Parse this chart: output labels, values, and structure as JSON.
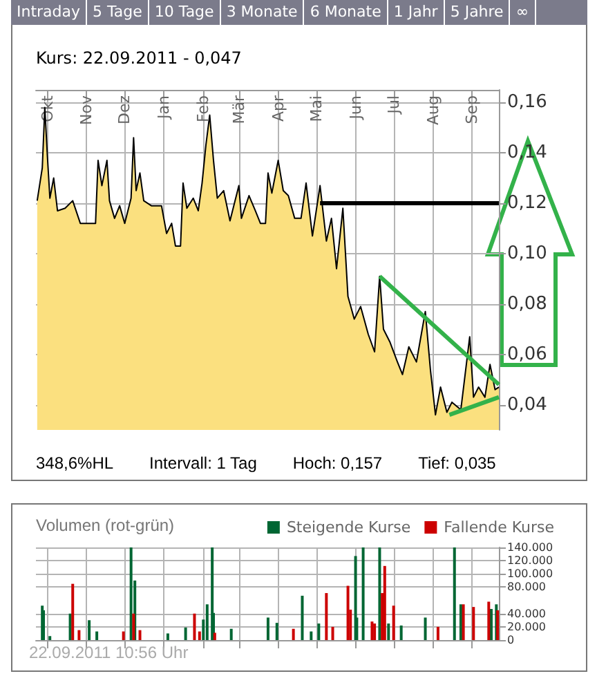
{
  "chart_data": [
    {
      "type": "other",
      "annotations": [
        "Intraday",
        "5 Tage",
        "10 Tage",
        "3 Monate",
        "6 Monate",
        "1 Jahr",
        "5 Jahre",
        "∞"
      ]
    },
    {
      "type": "area",
      "title": "Kurs: 22.09.2011 - 0,047",
      "annotations": [
        "348,6%HL",
        "Intervall: 1 Tag",
        "Hoch: 0,157",
        "Tief: 0,035"
      ],
      "grid": true,
      "xlim": [
        "2010-09-22",
        "2011-09-22"
      ],
      "xticks": [
        {
          "value": "2010-10-01",
          "label": "Okt"
        },
        {
          "value": "2010-11-01",
          "label": "Nov"
        },
        {
          "value": "2010-12-01",
          "label": "Dez"
        },
        {
          "value": "2011-01-01",
          "label": "Jan"
        },
        {
          "value": "2011-02-01",
          "label": "Feb"
        },
        {
          "value": "2011-03-01",
          "label": "Mär"
        },
        {
          "value": "2011-04-01",
          "label": "Apr"
        },
        {
          "value": "2011-05-01",
          "label": "Mai"
        },
        {
          "value": "2011-06-01",
          "label": "Jun"
        },
        {
          "value": "2011-07-01",
          "label": "Jul"
        },
        {
          "value": "2011-08-01",
          "label": "Aug"
        },
        {
          "value": "2011-09-01",
          "label": "Sep"
        }
      ],
      "ylim": [
        0.03,
        0.165
      ],
      "yticks": [
        {
          "value": 0.04,
          "label": "0,04"
        },
        {
          "value": 0.06,
          "label": "0,06"
        },
        {
          "value": 0.08,
          "label": "0,08"
        },
        {
          "value": 0.1,
          "label": "0,10"
        },
        {
          "value": 0.12,
          "label": "0,12"
        },
        {
          "value": 0.14,
          "label": "0,14"
        },
        {
          "value": 0.16,
          "label": "0,16"
        }
      ],
      "series": [
        {
          "color": "#fbe07f",
          "x": [
            "2010-09-23",
            "2010-09-27",
            "2010-09-29",
            "2010-10-01",
            "2010-10-03",
            "2010-10-06",
            "2010-10-09",
            "2010-10-15",
            "2010-10-21",
            "2010-10-27",
            "2010-11-08",
            "2010-11-10",
            "2010-11-13",
            "2010-11-17",
            "2010-11-19",
            "2010-11-23",
            "2010-11-27",
            "2010-12-01",
            "2010-12-06",
            "2010-12-08",
            "2010-12-10",
            "2010-12-13",
            "2010-12-16",
            "2010-12-22",
            "2010-12-30",
            "2011-01-03",
            "2011-01-07",
            "2011-01-10",
            "2011-01-14",
            "2011-01-16",
            "2011-01-19",
            "2011-01-24",
            "2011-01-28",
            "2011-01-31",
            "2011-02-03",
            "2011-02-06",
            "2011-02-09",
            "2011-02-12",
            "2011-02-17",
            "2011-02-22",
            "2011-03-01",
            "2011-03-03",
            "2011-03-09",
            "2011-03-14",
            "2011-03-18",
            "2011-03-22",
            "2011-03-24",
            "2011-03-27",
            "2011-04-01",
            "2011-04-05",
            "2011-04-09",
            "2011-04-14",
            "2011-04-19",
            "2011-04-23",
            "2011-04-28",
            "2011-05-04",
            "2011-05-09",
            "2011-05-13",
            "2011-05-17",
            "2011-05-22",
            "2011-05-26",
            "2011-05-31",
            "2011-06-05",
            "2011-06-11",
            "2011-06-16",
            "2011-06-20",
            "2011-06-23",
            "2011-06-28",
            "2011-07-04",
            "2011-07-08",
            "2011-07-13",
            "2011-07-19",
            "2011-07-26",
            "2011-07-30",
            "2011-08-03",
            "2011-08-07",
            "2011-08-12",
            "2011-08-16",
            "2011-08-23",
            "2011-08-30",
            "2011-09-02",
            "2011-09-06",
            "2011-09-11",
            "2011-09-15",
            "2011-09-19",
            "2011-09-22"
          ],
          "values": [
            0.121,
            0.134,
            0.158,
            0.139,
            0.122,
            0.13,
            0.117,
            0.118,
            0.121,
            0.112,
            0.112,
            0.137,
            0.127,
            0.137,
            0.121,
            0.114,
            0.119,
            0.112,
            0.122,
            0.146,
            0.125,
            0.132,
            0.121,
            0.119,
            0.119,
            0.108,
            0.112,
            0.103,
            0.103,
            0.128,
            0.118,
            0.122,
            0.117,
            0.128,
            0.143,
            0.155,
            0.137,
            0.122,
            0.125,
            0.113,
            0.127,
            0.114,
            0.123,
            0.117,
            0.112,
            0.112,
            0.132,
            0.124,
            0.137,
            0.125,
            0.123,
            0.114,
            0.114,
            0.128,
            0.107,
            0.127,
            0.105,
            0.114,
            0.094,
            0.118,
            0.083,
            0.074,
            0.079,
            0.068,
            0.061,
            0.091,
            0.07,
            0.065,
            0.057,
            0.052,
            0.063,
            0.057,
            0.077,
            0.054,
            0.036,
            0.047,
            0.037,
            0.041,
            0.038,
            0.067,
            0.043,
            0.047,
            0.043,
            0.056,
            0.046,
            0.047
          ]
        },
        {
          "type": "line",
          "color": "#000000",
          "x": [
            "2011-05-04",
            "2011-09-22"
          ],
          "values": [
            0.12,
            0.12
          ]
        },
        {
          "type": "line",
          "color": "#33b24a",
          "x": [
            "2011-06-20",
            "2011-09-22"
          ],
          "values": [
            0.091,
            0.048
          ]
        },
        {
          "type": "line",
          "color": "#33b24a",
          "x": [
            "2011-08-14",
            "2011-09-22"
          ],
          "values": [
            0.036,
            0.043
          ]
        }
      ]
    },
    {
      "type": "bar",
      "title": "Volumen (rot-grün)",
      "annotations": [
        "22.09.2011 10:56 Uhr"
      ],
      "grid": true,
      "legend": "top right",
      "tick_labels": "y",
      "xlim": [
        "2010-09-22",
        "2011-09-22"
      ],
      "xticks": [
        {
          "value": "2010-10-01",
          "label": null
        },
        {
          "value": "2010-11-01",
          "label": null
        },
        {
          "value": "2010-12-01",
          "label": null
        },
        {
          "value": "2011-01-01",
          "label": null
        },
        {
          "value": "2011-02-01",
          "label": null
        },
        {
          "value": "2011-03-01",
          "label": null
        },
        {
          "value": "2011-04-01",
          "label": null
        },
        {
          "value": "2011-05-01",
          "label": null
        },
        {
          "value": "2011-06-01",
          "label": null
        },
        {
          "value": "2011-07-01",
          "label": null
        },
        {
          "value": "2011-08-01",
          "label": null
        },
        {
          "value": "2011-09-01",
          "label": null
        }
      ],
      "ylim": [
        0,
        140000
      ],
      "yticks": [
        {
          "value": 0,
          "label": "0"
        },
        {
          "value": 20000,
          "label": "20.000"
        },
        {
          "value": 40000,
          "label": "40.000"
        },
        {
          "value": 80000,
          "label": "80.000"
        },
        {
          "value": 100000,
          "label": "100.000"
        },
        {
          "value": 120000,
          "label": "120.000"
        },
        {
          "value": 140000,
          "label": "140.000"
        }
      ],
      "series": [
        {
          "name": "Steigende Kurse",
          "color": "#006633",
          "x": [
            "2010-09-27",
            "2010-09-28",
            "2010-10-03",
            "2010-10-19",
            "2010-11-03",
            "2010-11-09",
            "2010-12-06",
            "2010-12-09",
            "2011-01-04",
            "2011-01-18",
            "2011-02-01",
            "2011-02-04",
            "2011-02-08",
            "2011-02-09",
            "2011-02-23",
            "2011-03-24",
            "2011-03-31",
            "2011-04-20",
            "2011-04-27",
            "2011-05-03",
            "2011-06-01",
            "2011-06-02",
            "2011-06-07",
            "2011-06-20",
            "2011-06-27",
            "2011-07-07",
            "2011-07-26",
            "2011-08-18",
            "2011-08-23",
            "2011-09-16",
            "2011-09-20"
          ],
          "values": [
            52000,
            45000,
            6000,
            40000,
            30000,
            13000,
            140000,
            90000,
            10000,
            19000,
            31000,
            54000,
            140000,
            41000,
            17000,
            34000,
            26000,
            67000,
            13000,
            25000,
            127000,
            34000,
            140000,
            140000,
            25000,
            22000,
            34000,
            140000,
            54000,
            47000,
            54000
          ]
        },
        {
          "name": "Fallende Kurse",
          "color": "#cc0000",
          "x": [
            "2010-10-21",
            "2010-10-26",
            "2010-11-30",
            "2010-12-08",
            "2010-12-13",
            "2011-01-25",
            "2011-01-29",
            "2011-02-10",
            "2011-04-13",
            "2011-05-09",
            "2011-05-14",
            "2011-05-26",
            "2011-05-28",
            "2011-06-14",
            "2011-06-16",
            "2011-06-22",
            "2011-06-24",
            "2011-07-01",
            "2011-08-05",
            "2011-08-25",
            "2011-09-02",
            "2011-09-14",
            "2011-09-21"
          ],
          "values": [
            85000,
            15000,
            13000,
            40000,
            15000,
            40000,
            13000,
            11000,
            17000,
            71000,
            20000,
            82000,
            46000,
            28000,
            25000,
            71000,
            112000,
            52000,
            20000,
            54000,
            50000,
            58000,
            45000
          ]
        }
      ]
    }
  ]
}
